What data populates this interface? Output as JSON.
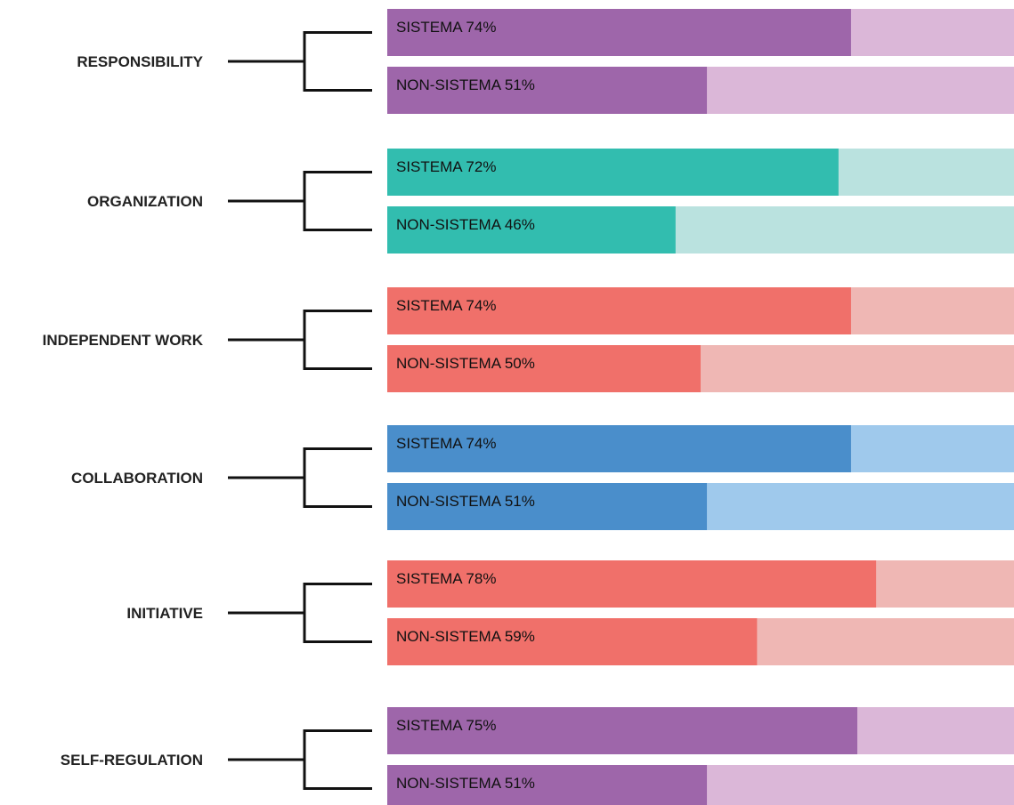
{
  "chart_data": {
    "type": "bar",
    "orientation": "horizontal",
    "value_unit": "%",
    "xlim": [
      0,
      100
    ],
    "categories": [
      "RESPONSIBILITY",
      "ORGANIZATION",
      "INDEPENDENT WORK",
      "COLLABORATION",
      "INITIATIVE",
      "SELF-REGULATION"
    ],
    "series": [
      {
        "name": "SISTEMA",
        "values": [
          74,
          72,
          74,
          74,
          78,
          75
        ]
      },
      {
        "name": "NON-SISTEMA",
        "values": [
          51,
          46,
          50,
          51,
          59,
          51
        ]
      }
    ],
    "bar_labels": [
      [
        "SISTEMA 74%",
        "NON-SISTEMA 51%"
      ],
      [
        "SISTEMA 72%",
        "NON-SISTEMA 46%"
      ],
      [
        "SISTEMA 74%",
        "NON-SISTEMA 50%"
      ],
      [
        "SISTEMA 74%",
        "NON-SISTEMA 51%"
      ],
      [
        "SISTEMA 78%",
        "NON-SISTEMA 59%"
      ],
      [
        "SISTEMA 75%",
        "NON-SISTEMA 51%"
      ]
    ],
    "category_colors": [
      {
        "fill": "#9e66aa",
        "track": "#dbb7d8"
      },
      {
        "fill": "#32bdaf",
        "track": "#bae2df"
      },
      {
        "fill": "#f0706a",
        "track": "#efb7b4"
      },
      {
        "fill": "#4a8ecb",
        "track": "#9fc9ec"
      },
      {
        "fill": "#f0706a",
        "track": "#efb7b4"
      },
      {
        "fill": "#9e66aa",
        "track": "#dbb7d8"
      }
    ],
    "title": "",
    "xlabel": "",
    "ylabel": "",
    "grid": false,
    "legend": "none"
  }
}
